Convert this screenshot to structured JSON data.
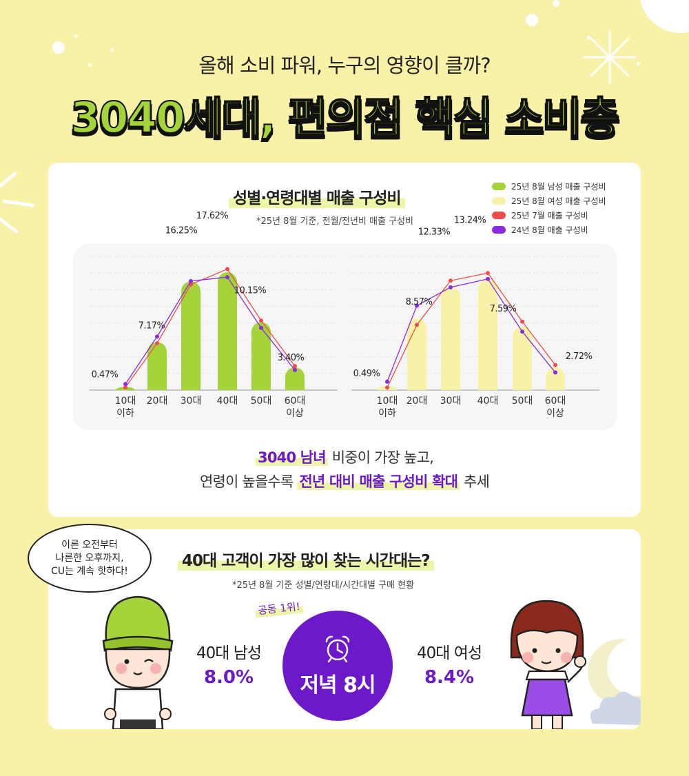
{
  "header": {
    "subtitle": "올해 소비 파워, 누구의 영향이 클까?",
    "headline": "3040세대, 편의점 핵심 소비층"
  },
  "chart_section": {
    "title": "성별·연령대별 매출 구성비",
    "note": "*25년 8월 기준, 전월/전년비 매출 구성비",
    "summary_line1_bold": "3040 남녀",
    "summary_line1_rest": " 비중이 가장 높고,",
    "summary_line2_pre": "연령이 높을수록 ",
    "summary_line2_bold": "전년 대비 매출 구성비 확대",
    "summary_line2_post": " 추세"
  },
  "chart_data": [
    {
      "type": "bar",
      "categories": [
        "10대\n이하",
        "20대",
        "30대",
        "40대",
        "50대",
        "60대\n이상"
      ],
      "series": [
        {
          "name": "25년 8월 남성 매출 구성비",
          "values": [
            0.47,
            7.17,
            16.25,
            17.62,
            10.15,
            3.4
          ],
          "color": "#a5d33a"
        },
        {
          "name": "25년 7월 매출 구성비",
          "values": [
            0.4,
            7.0,
            15.8,
            18.1,
            10.4,
            3.6
          ],
          "color": "#f24b4b"
        },
        {
          "name": "24년 8월 매출 구성비",
          "values": [
            0.9,
            8.0,
            16.3,
            16.9,
            9.3,
            3.0
          ],
          "color": "#8a2be2"
        }
      ],
      "value_labels": [
        "0.47%",
        "7.17%",
        "16.25%",
        "17.62%",
        "10.15%",
        "3.40%"
      ],
      "ylim": [
        0,
        20
      ]
    },
    {
      "type": "bar",
      "categories": [
        "10대\n이하",
        "20대",
        "30대",
        "40대",
        "50대",
        "60대\n이상"
      ],
      "series": [
        {
          "name": "25년 8월 여성 매출 구성비",
          "values": [
            0.49,
            8.57,
            12.33,
            13.24,
            7.59,
            2.72
          ],
          "color": "#f8f2a8"
        },
        {
          "name": "25년 7월 매출 구성비",
          "values": [
            0.3,
            7.8,
            13.1,
            14.0,
            8.2,
            3.0
          ],
          "color": "#f24b4b"
        },
        {
          "name": "24년 8월 매출 구성비",
          "values": [
            1.0,
            10.1,
            12.3,
            13.3,
            7.0,
            2.1
          ],
          "color": "#8a2be2"
        }
      ],
      "value_labels": [
        "0.49%",
        "8.57%",
        "12.33%",
        "13.24%",
        "7.59%",
        "2.72%"
      ],
      "ylim": [
        0,
        16
      ]
    }
  ],
  "legend": [
    {
      "label": "25년 8월 남성 매출 구성비",
      "color": "#a5d33a"
    },
    {
      "label": "25년 8월 여성 매출 구성비",
      "color": "#f8f2a8"
    },
    {
      "label": "25년 7월 매출 구성비",
      "color": "#f24b4b"
    },
    {
      "label": "24년 8월 매출 구성비",
      "color": "#8a2be2"
    }
  ],
  "time_section": {
    "bubble_line1": "이른 오전부터",
    "bubble_line2": "나른한 오후까지,",
    "bubble_line3": "CU는 계속 핫하다!",
    "title": "40대 고객이 가장 많이 찾는 시간대는?",
    "note": "*25년 8월 기준 성별/연령대/시간대별 구매 현황",
    "tag": "공동 1위!",
    "center_label": "저녁 8시",
    "male_label": "40대 남성",
    "male_value": "8.0%",
    "female_label": "40대 여성",
    "female_value": "8.4%",
    "icon": "alarm-clock-icon"
  }
}
